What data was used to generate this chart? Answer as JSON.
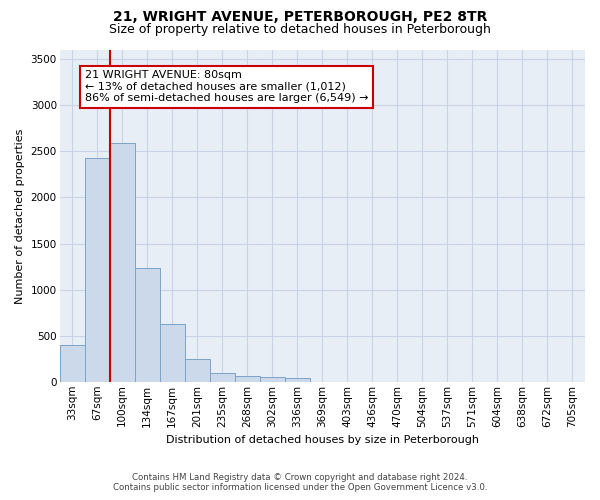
{
  "title": "21, WRIGHT AVENUE, PETERBOROUGH, PE2 8TR",
  "subtitle": "Size of property relative to detached houses in Peterborough",
  "xlabel": "Distribution of detached houses by size in Peterborough",
  "ylabel": "Number of detached properties",
  "footer_line1": "Contains HM Land Registry data © Crown copyright and database right 2024.",
  "footer_line2": "Contains public sector information licensed under the Open Government Licence v3.0.",
  "categories": [
    "33sqm",
    "67sqm",
    "100sqm",
    "134sqm",
    "167sqm",
    "201sqm",
    "235sqm",
    "268sqm",
    "302sqm",
    "336sqm",
    "369sqm",
    "403sqm",
    "436sqm",
    "470sqm",
    "504sqm",
    "537sqm",
    "571sqm",
    "604sqm",
    "638sqm",
    "672sqm",
    "705sqm"
  ],
  "values": [
    400,
    2430,
    2590,
    1230,
    630,
    250,
    95,
    60,
    55,
    45,
    0,
    0,
    0,
    0,
    0,
    0,
    0,
    0,
    0,
    0,
    0
  ],
  "bar_color": "#ccd9ea",
  "bar_edge_color": "#7ba3c8",
  "property_line_x": 1.5,
  "annotation_title": "21 WRIGHT AVENUE: 80sqm",
  "annotation_line1": "← 13% of detached houses are smaller (1,012)",
  "annotation_line2": "86% of semi-detached houses are larger (6,549) →",
  "annotation_box_color": "#ffffff",
  "annotation_box_edge": "#cc0000",
  "vline_color": "#cc0000",
  "ylim": [
    0,
    3600
  ],
  "yticks": [
    0,
    500,
    1000,
    1500,
    2000,
    2500,
    3000,
    3500
  ],
  "grid_color": "#c8d4e4",
  "background_color": "#e8eef6",
  "title_fontsize": 10,
  "subtitle_fontsize": 9,
  "xlabel_fontsize": 8,
  "ylabel_fontsize": 8,
  "annotation_fontsize": 8,
  "tick_fontsize": 7.5
}
